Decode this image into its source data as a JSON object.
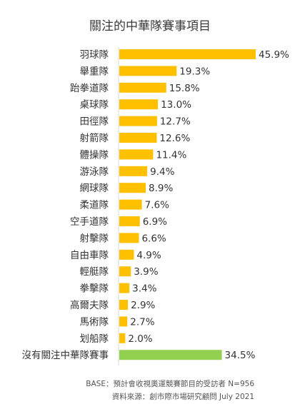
{
  "chart_data": {
    "type": "bar",
    "orientation": "horizontal",
    "title": "關注的中華隊賽事項目",
    "categories": [
      "羽球隊",
      "舉重隊",
      "跆拳道隊",
      "桌球隊",
      "田徑隊",
      "射箭隊",
      "體操隊",
      "游泳隊",
      "網球隊",
      "柔道隊",
      "空手道隊",
      "射擊隊",
      "自由車隊",
      "輕艇隊",
      "拳擊隊",
      "高爾夫隊",
      "馬術隊",
      "划船隊",
      "沒有關注中華隊賽事"
    ],
    "values": [
      45.9,
      19.3,
      15.8,
      13.0,
      12.7,
      12.6,
      11.4,
      9.4,
      8.9,
      7.6,
      6.9,
      6.6,
      4.9,
      3.9,
      3.4,
      2.9,
      2.7,
      2.0,
      34.5
    ],
    "value_labels": [
      "45.9%",
      "19.3%",
      "15.8%",
      "13.0%",
      "12.7%",
      "12.6%",
      "11.4%",
      "9.4%",
      "8.9%",
      "7.6%",
      "6.9%",
      "6.6%",
      "4.9%",
      "3.9%",
      "3.4%",
      "2.9%",
      "2.7%",
      "2.0%",
      "34.5%"
    ],
    "colors": {
      "default": "#FFC000",
      "highlight": "#92D050"
    },
    "bar_colors": [
      "default",
      "default",
      "default",
      "default",
      "default",
      "default",
      "default",
      "default",
      "default",
      "default",
      "default",
      "default",
      "default",
      "default",
      "default",
      "default",
      "default",
      "default",
      "highlight"
    ],
    "xlim": [
      0,
      45.9
    ],
    "grid": false,
    "legend": "none"
  },
  "footer": {
    "base": "BASE：預計會收視奧運競賽節目的受訪者 N=956",
    "source": "資料來源：創市際市場研究顧問 July 2021"
  }
}
